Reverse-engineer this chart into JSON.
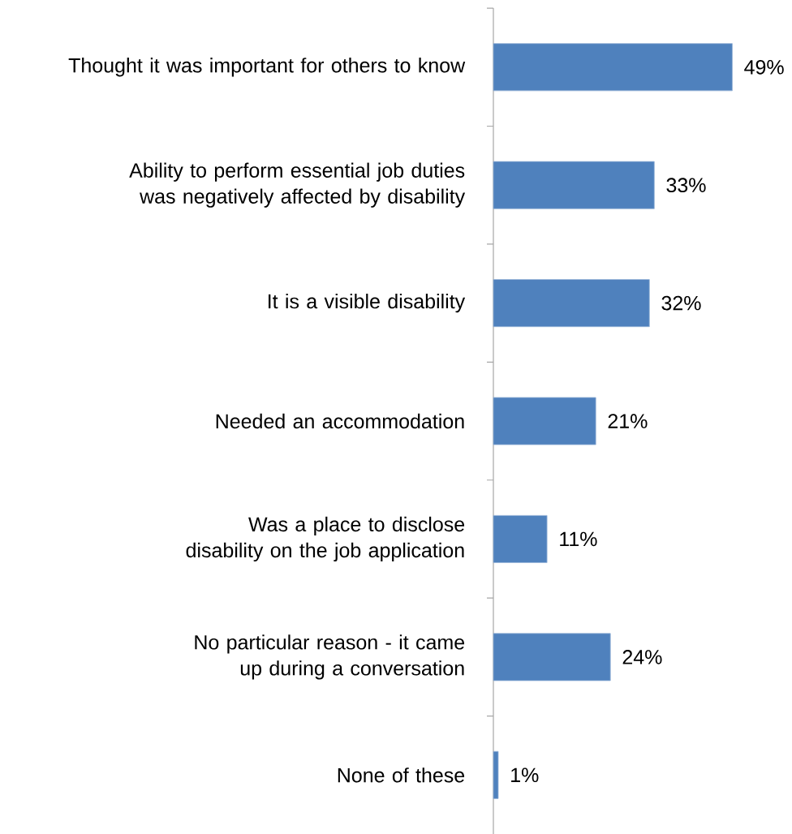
{
  "chart_data": {
    "type": "bar",
    "orientation": "horizontal",
    "categories": [
      "Thought it was important for others to know",
      "Ability to perform essential job duties was negatively affected by  disability",
      "It is a visible disability",
      "Needed an accommodation",
      "Was a place to disclose  disability on the job application",
      "No particular reason - it came up during a conversation",
      "None of these"
    ],
    "values": [
      49,
      33,
      32,
      21,
      11,
      24,
      1
    ],
    "value_labels": [
      "49%",
      "33%",
      "32%",
      "21%",
      "11%",
      "24%",
      "1%"
    ],
    "color": "#4f81bd"
  }
}
